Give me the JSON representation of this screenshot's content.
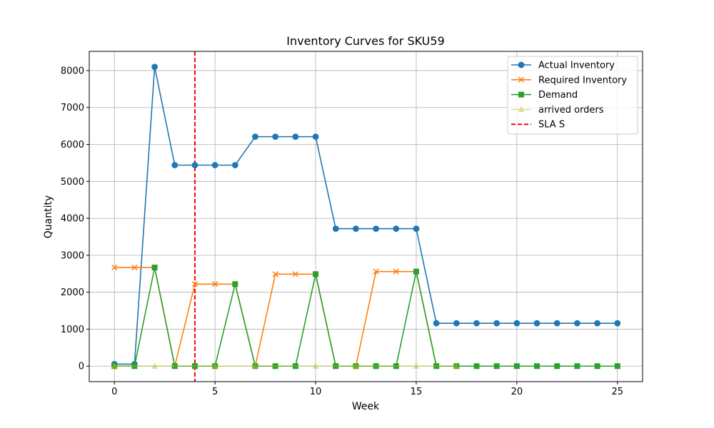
{
  "chart_data": {
    "type": "line",
    "title": "Inventory Curves for SKU59",
    "xlabel": "Week",
    "ylabel": "Quantity",
    "xlim": [
      -1.25,
      26.25
    ],
    "ylim": [
      -420,
      8520
    ],
    "xticks": [
      0,
      5,
      10,
      15,
      20,
      25
    ],
    "yticks": [
      0,
      1000,
      2000,
      3000,
      4000,
      5000,
      6000,
      7000,
      8000
    ],
    "grid": true,
    "legend_position": "top-right",
    "x": [
      0,
      1,
      2,
      3,
      4,
      5,
      6,
      7,
      8,
      9,
      10,
      11,
      12,
      13,
      14,
      15,
      16,
      17,
      18,
      19,
      20,
      21,
      22,
      23,
      24,
      25
    ],
    "series": [
      {
        "name": "Actual Inventory",
        "color": "#1f77b4",
        "marker": "circle",
        "values": [
          55,
          55,
          8100,
          5440,
          5440,
          5440,
          5440,
          6210,
          6210,
          6210,
          6210,
          3720,
          3720,
          3720,
          3720,
          3720,
          1160,
          1160,
          1160,
          1160,
          1160,
          1160,
          1160,
          1160,
          1160,
          1160
        ]
      },
      {
        "name": "Required Inventory",
        "color": "#ff7f0e",
        "marker": "x",
        "values": [
          2670,
          2670,
          2670,
          0,
          2220,
          2220,
          2220,
          0,
          2490,
          2490,
          2490,
          0,
          0,
          2560,
          2560,
          2560,
          0,
          0,
          0,
          0,
          0,
          0,
          0,
          0,
          0,
          0
        ]
      },
      {
        "name": "Demand",
        "color": "#2ca02c",
        "marker": "square",
        "values": [
          0,
          0,
          2670,
          0,
          0,
          0,
          2220,
          0,
          0,
          0,
          2490,
          0,
          0,
          0,
          0,
          2560,
          0,
          0,
          0,
          0,
          0,
          0,
          0,
          0,
          0,
          0
        ]
      },
      {
        "name": "arrived orders",
        "color": "#bcbd22",
        "marker": "triangle",
        "opacity": 0.5,
        "x": [
          0,
          2,
          5,
          7,
          10,
          12,
          15,
          17
        ],
        "values": [
          0,
          0,
          0,
          0,
          0,
          0,
          0,
          0
        ]
      }
    ],
    "vlines": [
      {
        "name": "SLA S",
        "x": 4,
        "color": "#ff0000",
        "style": "dashed"
      }
    ]
  }
}
